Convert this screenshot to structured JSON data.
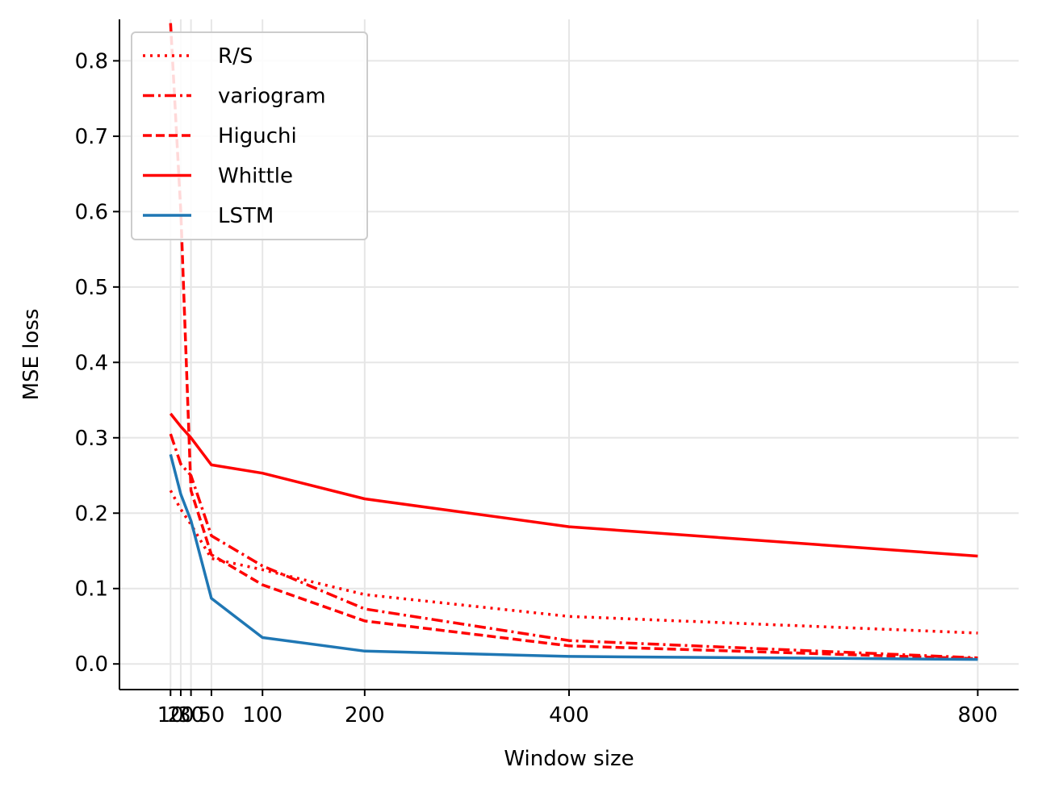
{
  "chart_data": {
    "type": "line",
    "title": "",
    "xlabel": "Window size",
    "ylabel": "MSE loss",
    "xlim": [
      -40,
      840
    ],
    "ylim": [
      -0.034,
      0.855
    ],
    "xticks": [
      10,
      20,
      30,
      50,
      100,
      200,
      400,
      800
    ],
    "xtick_labels": [
      "10",
      "20",
      "30",
      "50",
      "100",
      "200",
      "400",
      "800"
    ],
    "yticks": [
      0.0,
      0.1,
      0.2,
      0.3,
      0.4,
      0.5,
      0.6,
      0.7,
      0.8
    ],
    "ytick_labels": [
      "0.0",
      "0.1",
      "0.2",
      "0.3",
      "0.4",
      "0.5",
      "0.6",
      "0.7",
      "0.8"
    ],
    "grid": true,
    "legend_position": "upper left",
    "x": [
      10,
      20,
      30,
      50,
      100,
      200,
      400,
      800
    ],
    "series": [
      {
        "name": "R/S",
        "style": "dotted",
        "color": "#ff0000",
        "values": [
          0.23,
          0.205,
          0.185,
          0.14,
          0.125,
          0.092,
          0.063,
          0.041
        ]
      },
      {
        "name": "variogram",
        "style": "dashdot",
        "color": "#ff0000",
        "values": [
          0.305,
          0.265,
          0.25,
          0.17,
          0.13,
          0.073,
          0.031,
          0.008
        ]
      },
      {
        "name": "Higuchi",
        "style": "dashed",
        "color": "#ff0000",
        "values": [
          0.85,
          0.6,
          0.23,
          0.145,
          0.105,
          0.057,
          0.024,
          0.007
        ]
      },
      {
        "name": "Whittle",
        "style": "solid",
        "color": "#ff0000",
        "values": [
          0.332,
          0.315,
          0.3,
          0.264,
          0.253,
          0.219,
          0.182,
          0.143
        ]
      },
      {
        "name": "LSTM",
        "style": "solid",
        "color": "#1f77b4",
        "values": [
          0.278,
          0.225,
          0.19,
          0.087,
          0.035,
          0.017,
          0.01,
          0.006
        ]
      }
    ]
  }
}
